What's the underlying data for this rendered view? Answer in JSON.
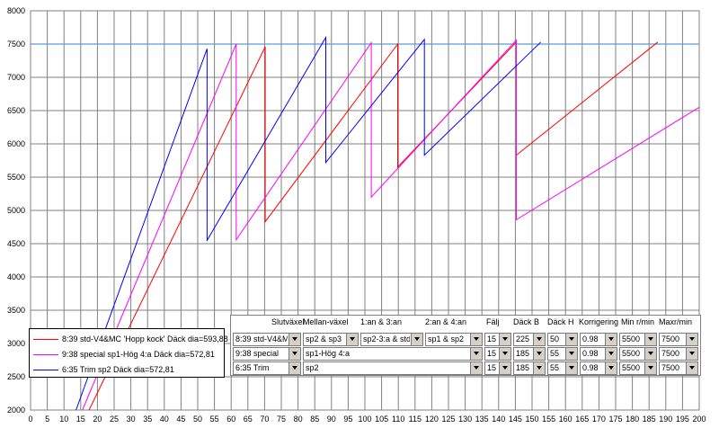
{
  "chart_data": {
    "type": "line",
    "xlim": [
      0,
      200
    ],
    "ylim": [
      2000,
      8000
    ],
    "xticks": [
      0,
      5,
      10,
      15,
      20,
      25,
      30,
      35,
      40,
      45,
      50,
      55,
      60,
      65,
      70,
      75,
      80,
      85,
      90,
      95,
      100,
      105,
      110,
      115,
      120,
      125,
      130,
      135,
      140,
      145,
      150,
      155,
      160,
      165,
      170,
      175,
      180,
      185,
      190,
      195,
      200
    ],
    "yticks": [
      2000,
      2500,
      3000,
      3500,
      4000,
      4500,
      5000,
      5500,
      6000,
      6500,
      7000,
      7500,
      8000
    ],
    "grid": true,
    "reference_line": 7500,
    "series": [
      {
        "name": "8:39 std-V4&MC  'Hopp kock'  Däck dia=593,88",
        "color": "#ff0000",
        "points": [
          [
            17.5,
            2000
          ],
          [
            70.2,
            7460
          ],
          [
            70.2,
            4830
          ],
          [
            109.8,
            7500
          ],
          [
            109.8,
            5650
          ],
          [
            145.3,
            7530
          ],
          [
            145.3,
            5830
          ],
          [
            187.6,
            7530
          ]
        ]
      },
      {
        "name": "9:38 special  sp1-Hög 4:a  Däck dia=572,81",
        "color": "#ff00ff",
        "points": [
          [
            15.5,
            2000
          ],
          [
            61.5,
            7500
          ],
          [
            61.5,
            4560
          ],
          [
            101.9,
            7520
          ],
          [
            101.9,
            5200
          ],
          [
            145.3,
            7560
          ],
          [
            145.3,
            4860
          ],
          [
            200,
            6550
          ]
        ]
      },
      {
        "name": "6:35 Trim  sp2  Däck dia=572,81",
        "color": "#0000ff",
        "points": [
          [
            13.6,
            2000
          ],
          [
            52.8,
            7430
          ],
          [
            52.8,
            4550
          ],
          [
            88.3,
            7600
          ],
          [
            88.3,
            5720
          ],
          [
            117.8,
            7570
          ],
          [
            117.8,
            5830
          ],
          [
            152.6,
            7530
          ]
        ]
      }
    ]
  },
  "legend": {
    "items": [
      {
        "label": "8:39 std-V4&MC  'Hopp kock'  Däck dia=593,88",
        "color": "#ff0000"
      },
      {
        "label": "9:38 special  sp1-Hög 4:a  Däck dia=572,81",
        "color": "#ff00ff"
      },
      {
        "label": "6:35 Trim  sp2  Däck dia=572,81",
        "color": "#0000ff"
      }
    ]
  },
  "panel": {
    "headers": {
      "slutvaxel": "Slutväxel",
      "mellan": "Mellan-växel",
      "an13": "1:an & 3:an",
      "an24": "2:an & 4:an",
      "falj": "Fälj",
      "dack_b": "Däck B",
      "dack_h": "Däck H",
      "korrigering": "Korrigering",
      "min_rmin": "Min r/min",
      "max_rmin": "Maxr/min"
    },
    "rows": [
      {
        "slutvaxel": "8:39 std-V4&MC",
        "mellan": "sp2 & sp3",
        "an13": "sp2-3:a & std",
        "an24": "sp1 & sp2",
        "falj": "15",
        "dack_b": "225",
        "dack_h": "50",
        "korr": "0.98",
        "min": "5500",
        "max": "7500"
      },
      {
        "slutvaxel": "9:38 special",
        "mellan": "sp1-Hög 4:a",
        "falj": "15",
        "dack_b": "185",
        "dack_h": "55",
        "korr": "0.98",
        "min": "5500",
        "max": "7500"
      },
      {
        "slutvaxel": "6:35 Trim",
        "mellan": "sp2",
        "falj": "15",
        "dack_b": "185",
        "dack_h": "55",
        "korr": "0.98",
        "min": "5500",
        "max": "7500"
      }
    ]
  }
}
